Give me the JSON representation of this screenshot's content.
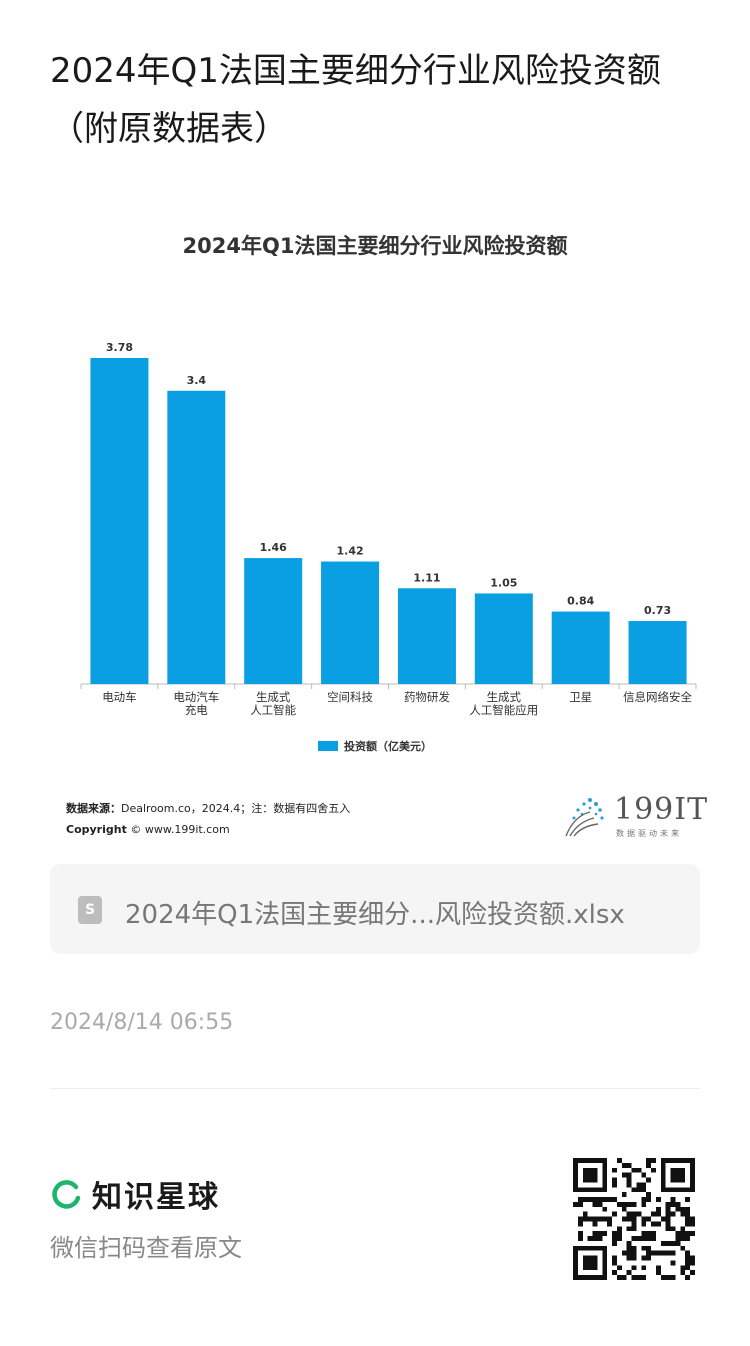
{
  "post": {
    "title": "2024年Q1法国主要细分行业风险投资额（附原数据表）",
    "file_name": "2024年Q1法国主要细分...风险投资额.xlsx",
    "file_icon": "S",
    "date": "2024/8/14 06:55"
  },
  "footer": {
    "brand_name": "知识星球",
    "scan_hint": "微信扫码查看原文"
  },
  "logo": {
    "text": "199IT",
    "subtitle": "数据驱动未来"
  },
  "source": {
    "label": "数据来源：",
    "text": "Dealroom.co，2024.4；注：数据有四舍五入",
    "copyright_label": "Copyright",
    "copyright_text": "© www.199it.com"
  },
  "chart_data": {
    "type": "bar",
    "title": "2024年Q1法国主要细分行业风险投资额",
    "categories": [
      [
        "电动车"
      ],
      [
        "电动汽车",
        "充电"
      ],
      [
        "生成式",
        "人工智能"
      ],
      [
        "空间科技"
      ],
      [
        "药物研发"
      ],
      [
        "生成式",
        "人工智能应用"
      ],
      [
        "卫星"
      ],
      [
        "信息网络安全"
      ]
    ],
    "series": [
      {
        "name": "投资额（亿美元）",
        "values": [
          3.78,
          3.4,
          1.46,
          1.42,
          1.11,
          1.05,
          0.84,
          0.73
        ]
      }
    ],
    "value_labels": [
      "3.78",
      "3.4",
      "1.46",
      "1.42",
      "1.11",
      "1.05",
      "0.84",
      "0.73"
    ],
    "ylim": [
      0,
      3.78
    ],
    "color": "#0a9fe3",
    "legend_position": "bottom",
    "grid": false
  }
}
